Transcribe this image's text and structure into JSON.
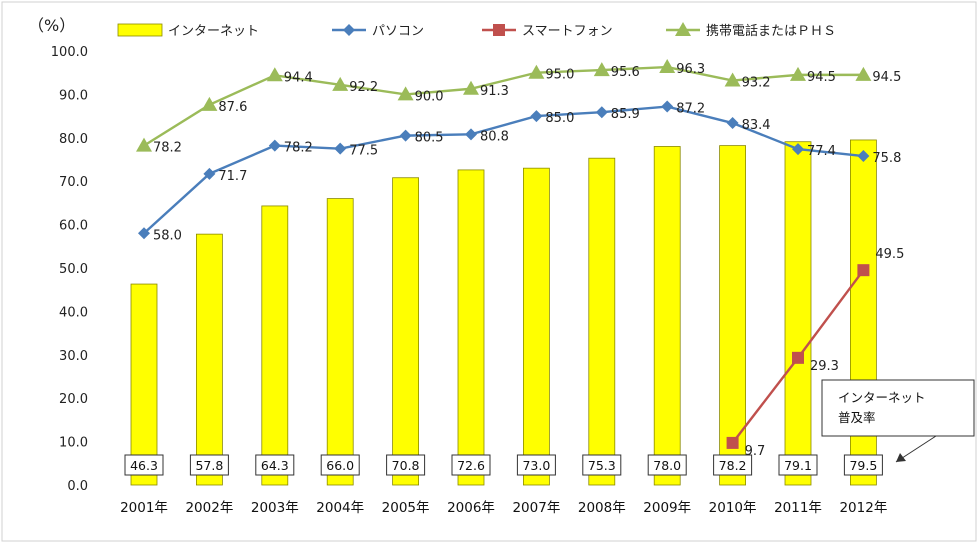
{
  "chart_data": {
    "type": "bar",
    "ylabel": "（%）",
    "ylim": [
      0,
      100
    ],
    "yticks": [
      "0.0",
      "10.0",
      "20.0",
      "30.0",
      "40.0",
      "50.0",
      "60.0",
      "70.0",
      "80.0",
      "90.0",
      "100.0"
    ],
    "categories": [
      "2001年",
      "2002年",
      "2003年",
      "2004年",
      "2005年",
      "2006年",
      "2007年",
      "2008年",
      "2009年",
      "2010年",
      "2011年",
      "2012年"
    ],
    "series": [
      {
        "name": "インターネット",
        "kind": "bar",
        "color": "#ffff00",
        "values": [
          46.3,
          57.8,
          64.3,
          66.0,
          70.8,
          72.6,
          73.0,
          75.3,
          78.0,
          78.2,
          79.1,
          79.5
        ],
        "labels": [
          "46.3",
          "57.8",
          "64.3",
          "66.0",
          "70.8",
          "72.6",
          "73.0",
          "75.3",
          "78.0",
          "78.2",
          "79.1",
          "79.5"
        ]
      },
      {
        "name": "パソコン",
        "kind": "line",
        "color": "#4a7ebb",
        "marker": "diamond",
        "values": [
          58.0,
          71.7,
          78.2,
          77.5,
          80.5,
          80.8,
          85.0,
          85.9,
          87.2,
          83.4,
          77.4,
          75.8
        ],
        "labels": [
          "58.0",
          "71.7",
          "78.2",
          "77.5",
          "80.5",
          "80.8",
          "85.0",
          "85.9",
          "87.2",
          "83.4",
          "77.4",
          "75.8"
        ]
      },
      {
        "name": "スマートフォン",
        "kind": "line",
        "color": "#c0504d",
        "marker": "square",
        "values": [
          null,
          null,
          null,
          null,
          null,
          null,
          null,
          null,
          null,
          9.7,
          29.3,
          49.5
        ],
        "labels": [
          "",
          "",
          "",
          "",
          "",
          "",
          "",
          "",
          "",
          "9.7",
          "29.3",
          "49.5"
        ]
      },
      {
        "name": "携帯電話またはＰＨＳ",
        "kind": "line",
        "color": "#9bbb59",
        "marker": "triangle",
        "values": [
          78.2,
          87.6,
          94.4,
          92.2,
          90.0,
          91.3,
          95.0,
          95.6,
          96.3,
          93.2,
          94.5,
          94.5
        ],
        "labels": [
          "78.2",
          "87.6",
          "94.4",
          "92.2",
          "90.0",
          "91.3",
          "95.0",
          "95.6",
          "96.3",
          "93.2",
          "94.5",
          "94.5"
        ]
      }
    ],
    "legend_position": "top",
    "grid": false,
    "annotation": [
      "インターネット",
      "普及率"
    ]
  }
}
